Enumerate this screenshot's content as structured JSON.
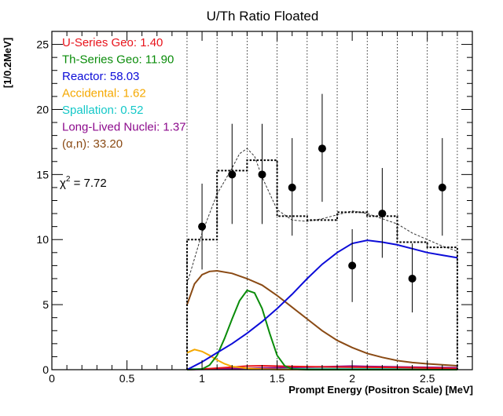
{
  "chart_data": {
    "type": "line",
    "title": "U/Th Ratio Floated",
    "xlabel": "Prompt Energy (Positron Scale) [MeV]",
    "ylabel": "[1/0.2MeV]",
    "xlim": [
      0,
      2.8
    ],
    "ylim": [
      0,
      26
    ],
    "x_ticks": [
      0,
      0.5,
      1,
      1.5,
      2,
      2.5
    ],
    "x_tick_labels": [
      "0",
      "0.5",
      "1",
      "1.5",
      "2",
      "2.5"
    ],
    "y_ticks": [
      0,
      5,
      10,
      15,
      20,
      25
    ],
    "y_tick_labels": [
      "0",
      "5",
      "10",
      "15",
      "20",
      "25"
    ],
    "grid": false,
    "bin_edges": [
      0.9,
      1.1,
      1.3,
      1.5,
      1.7,
      1.9,
      2.1,
      2.3,
      2.5,
      2.7
    ],
    "legend": [
      {
        "label": "U-Series Geo: 1.40",
        "color": "#e8141c"
      },
      {
        "label": "Th-Series Geo: 11.90",
        "color": "#0a8c0a"
      },
      {
        "label": "Reactor: 58.03",
        "color": "#0c0cd8"
      },
      {
        "label": "Accidental: 1.62",
        "color": "#f5a800"
      },
      {
        "label": "Spallation: 0.52",
        "color": "#14c8c8"
      },
      {
        "label": "Long-Lived Nuclei: 1.37",
        "color": "#8c0a8c"
      },
      {
        "label": "(α,n): 33.20",
        "color": "#8a4a14"
      }
    ],
    "chi2_label": "χ² = 7.72",
    "data_points": {
      "name": "Data",
      "x": [
        1.0,
        1.2,
        1.4,
        1.6,
        1.8,
        2.0,
        2.2,
        2.4,
        2.6
      ],
      "y": [
        11,
        15,
        15,
        14,
        17,
        8,
        12,
        7,
        14
      ],
      "err_lo": [
        3.3,
        3.8,
        3.8,
        3.7,
        4.1,
        2.8,
        3.4,
        2.6,
        3.7
      ],
      "err_hi": [
        3.3,
        3.9,
        3.9,
        3.8,
        4.2,
        2.8,
        3.5,
        2.7,
        3.8
      ]
    },
    "binned_total": {
      "x": [
        1.0,
        1.2,
        1.4,
        1.6,
        1.8,
        2.0,
        2.2,
        2.4,
        2.6
      ],
      "y": [
        10.0,
        15.3,
        16.1,
        11.8,
        11.5,
        12.1,
        11.8,
        9.8,
        9.4
      ]
    },
    "series": [
      {
        "color": "#333333",
        "style": "dashed",
        "x": [
          0.9,
          1.0,
          1.1,
          1.2,
          1.25,
          1.3,
          1.35,
          1.4,
          1.5,
          1.6,
          1.7,
          1.8,
          1.9,
          2.0,
          2.1,
          2.2,
          2.3,
          2.4,
          2.5,
          2.6,
          2.7
        ],
        "y": [
          6.6,
          10.5,
          13.5,
          15.5,
          16.6,
          17.0,
          16.4,
          14.8,
          12.3,
          11.5,
          11.4,
          11.6,
          11.9,
          12.2,
          12.0,
          11.6,
          11.2,
          10.5,
          10.0,
          9.5,
          9.1
        ]
      },
      {
        "color": "#0c0cd8",
        "x": [
          0.9,
          1.0,
          1.1,
          1.2,
          1.3,
          1.4,
          1.5,
          1.6,
          1.7,
          1.8,
          1.9,
          2.0,
          2.1,
          2.2,
          2.3,
          2.4,
          2.5,
          2.6,
          2.7
        ],
        "y": [
          0.0,
          0.6,
          1.3,
          2.0,
          2.8,
          3.7,
          4.7,
          5.8,
          7.0,
          8.1,
          9.0,
          9.7,
          9.95,
          9.8,
          9.6,
          9.3,
          9.0,
          8.8,
          8.6
        ]
      },
      {
        "color": "#8a4a14",
        "x": [
          0.9,
          0.95,
          1.0,
          1.05,
          1.1,
          1.2,
          1.3,
          1.4,
          1.5,
          1.6,
          1.7,
          1.8,
          1.9,
          2.0,
          2.1,
          2.2,
          2.3,
          2.4,
          2.5,
          2.6,
          2.7
        ],
        "y": [
          5.0,
          6.6,
          7.3,
          7.55,
          7.6,
          7.4,
          7.0,
          6.5,
          5.7,
          4.8,
          3.9,
          3.0,
          2.25,
          1.7,
          1.25,
          0.95,
          0.7,
          0.55,
          0.45,
          0.38,
          0.3
        ]
      },
      {
        "color": "#0a8c0a",
        "x": [
          0.9,
          1.0,
          1.05,
          1.1,
          1.15,
          1.2,
          1.25,
          1.3,
          1.35,
          1.4,
          1.45,
          1.5,
          1.55,
          1.6,
          1.7,
          2.7
        ],
        "y": [
          0.0,
          0.05,
          0.35,
          1.1,
          2.4,
          3.9,
          5.3,
          6.1,
          5.9,
          4.7,
          2.8,
          1.1,
          0.3,
          0.05,
          0.0,
          0.0
        ]
      },
      {
        "color": "#f5a800",
        "x": [
          0.9,
          0.95,
          1.0,
          1.05,
          1.1,
          1.15,
          1.2,
          1.3,
          1.4,
          1.5,
          2.7
        ],
        "y": [
          1.3,
          1.55,
          1.4,
          1.1,
          0.75,
          0.45,
          0.25,
          0.1,
          0.05,
          0.02,
          0.0
        ]
      },
      {
        "color": "#e8141c",
        "x": [
          0.9,
          1.0,
          1.1,
          1.2,
          1.3,
          1.4,
          1.5,
          1.6,
          1.8,
          2.0,
          2.2,
          2.4,
          2.6,
          2.7
        ],
        "y": [
          0.0,
          0.05,
          0.12,
          0.2,
          0.28,
          0.3,
          0.28,
          0.25,
          0.22,
          0.2,
          0.18,
          0.15,
          0.1,
          0.08
        ]
      },
      {
        "color": "#8c0a8c",
        "x": [
          0.9,
          1.1,
          1.3,
          1.5,
          1.7,
          1.9,
          2.0,
          2.1,
          2.3,
          2.5,
          2.7
        ],
        "y": [
          0.0,
          0.05,
          0.1,
          0.15,
          0.2,
          0.25,
          0.28,
          0.25,
          0.22,
          0.18,
          0.15
        ]
      },
      {
        "color": "#14c8c8",
        "x": [
          0.9,
          1.1,
          1.3,
          1.5,
          1.7,
          1.9,
          2.1,
          2.3,
          2.5,
          2.7
        ],
        "y": [
          0.05,
          0.06,
          0.07,
          0.07,
          0.07,
          0.07,
          0.07,
          0.06,
          0.06,
          0.05
        ]
      }
    ]
  }
}
